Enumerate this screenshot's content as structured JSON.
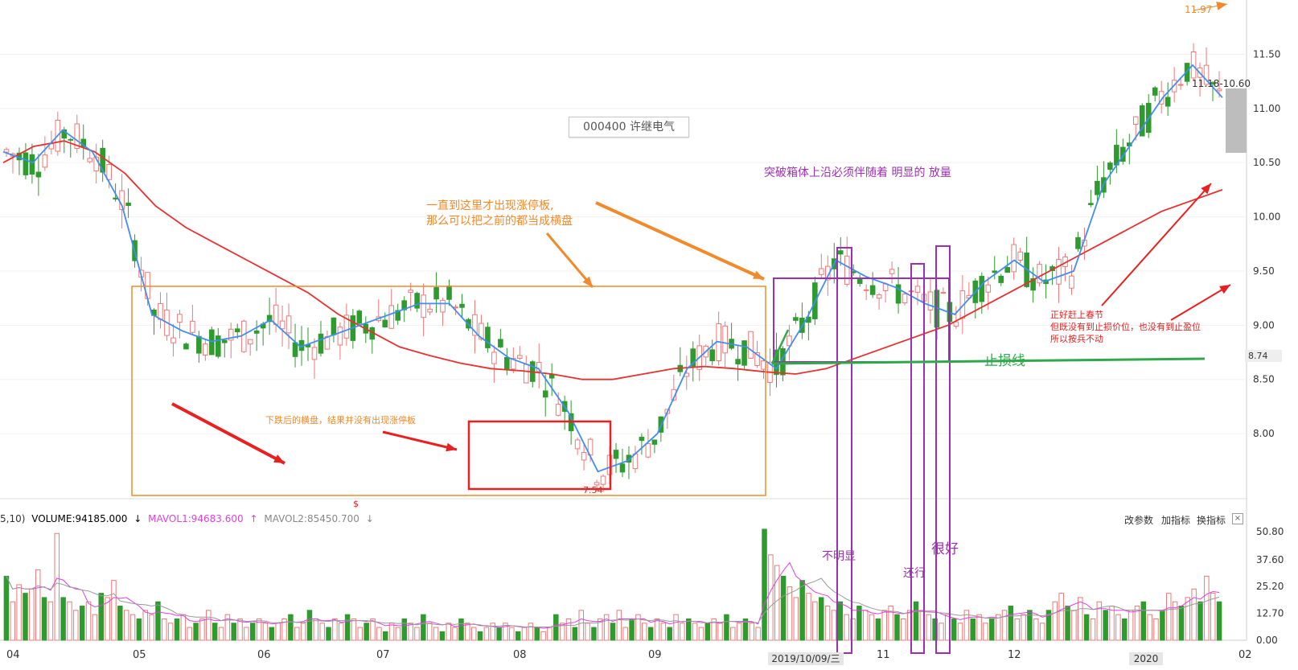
{
  "ticker": "000400 许继电气",
  "chart_data": [
    {
      "type": "candlestick",
      "x_ticks": [
        {
          "label": "04",
          "date": "2019-04"
        },
        {
          "label": "05",
          "date": "2019-05"
        },
        {
          "label": "06",
          "date": "2019-06"
        },
        {
          "label": "07",
          "date": "2019-07"
        },
        {
          "label": "08",
          "date": "2019-08"
        },
        {
          "label": "09",
          "date": "2019-09"
        },
        {
          "label": "11",
          "date": "2019-11"
        },
        {
          "label": "12",
          "date": "2019-12"
        },
        {
          "label": "02",
          "date": "2020-02"
        }
      ],
      "y_ticks": [
        "8.00",
        "8.50",
        "9.00",
        "9.50",
        "10.00",
        "10.50",
        "11.00",
        "11.50"
      ],
      "ylim": [
        7.4,
        12.0
      ],
      "series": [
        {
          "name": "MA5",
          "color": "#3f8ef0",
          "values": [
            10.6,
            10.5,
            10.8,
            10.6,
            10.1,
            9.1,
            8.95,
            8.85,
            8.9,
            9.05,
            8.8,
            8.9,
            9.0,
            9.1,
            9.2,
            9.2,
            8.9,
            8.7,
            8.6,
            8.2,
            7.65,
            7.75,
            8.0,
            8.6,
            8.85,
            8.8,
            8.6,
            9.05,
            9.6,
            9.45,
            9.35,
            9.2,
            9.1,
            9.4,
            9.6,
            9.4,
            9.5,
            10.3,
            10.7,
            11.1,
            11.4,
            11.1
          ]
        },
        {
          "name": "MA60",
          "color": "#e83030",
          "values": [
            10.5,
            10.65,
            10.7,
            10.6,
            10.4,
            10.1,
            9.9,
            9.75,
            9.6,
            9.45,
            9.3,
            9.1,
            8.95,
            8.8,
            8.72,
            8.65,
            8.6,
            8.58,
            8.55,
            8.5,
            8.5,
            8.55,
            8.6,
            8.62,
            8.6,
            8.57,
            8.55,
            8.6,
            8.7,
            8.8,
            8.9,
            9.0,
            9.15,
            9.3,
            9.45,
            9.6,
            9.75,
            9.9,
            10.05,
            10.15,
            10.25
          ]
        }
      ],
      "annotations": {
        "high_label": "11.97",
        "low_label": "7.54",
        "range_label": "11.18-10.60",
        "last_price": "8.74",
        "note_1": "一直到这里才出现涨停板,",
        "note_2": "那么可以把之前的都当成横盘",
        "note_3": "下跌后的横盘，结果并没有出现涨停板",
        "note_4": "突破箱体上沿必须伴随着 明显的 放量",
        "stop_line_label": "止损线",
        "note_5a": "正好赶上春节",
        "note_5b": "但既没有到止损价位，也没有到止盈位",
        "note_5c": "所以按兵不动",
        "vol_note_1": "不明显",
        "vol_note_2": "还行",
        "vol_note_3": "很好",
        "small_marker": "$"
      }
    },
    {
      "type": "bar",
      "title": "VOLUME",
      "y_ticks": [
        "0.00",
        "12.70",
        "25.20",
        "37.60",
        "50.80"
      ],
      "ylim": [
        0,
        55
      ],
      "values": [
        30,
        18,
        26,
        22,
        24,
        33,
        20,
        18,
        50,
        20,
        18,
        14,
        16,
        18,
        12,
        22,
        20,
        28,
        16,
        14,
        12,
        10,
        14,
        12,
        18,
        10,
        8,
        10,
        12,
        6,
        8,
        10,
        14,
        8,
        6,
        12,
        8,
        10,
        6,
        8,
        10,
        8,
        6,
        8,
        10,
        12,
        6,
        8,
        14,
        10,
        8,
        6,
        10,
        8,
        12,
        10,
        6,
        8,
        10,
        6,
        4,
        8,
        6,
        10,
        8,
        6,
        12,
        8,
        6,
        4,
        8,
        6,
        10,
        8,
        6,
        4,
        6,
        8,
        6,
        8,
        6,
        4,
        6,
        8,
        6,
        4,
        6,
        12,
        8,
        10,
        6,
        14,
        8,
        6,
        10,
        12,
        8,
        14,
        6,
        10,
        12,
        8,
        6,
        10,
        8,
        6,
        12,
        8,
        10,
        8,
        6,
        8,
        10,
        8,
        12,
        6,
        8,
        10,
        8,
        6,
        52,
        40,
        35,
        30,
        25,
        20,
        28,
        22,
        18,
        20,
        16,
        14,
        18,
        12,
        10,
        16,
        14,
        12,
        10,
        14,
        16,
        12,
        10,
        14,
        18,
        14,
        12,
        10,
        8,
        12,
        10,
        8,
        14,
        10,
        12,
        8,
        10,
        12,
        14,
        16,
        10,
        12,
        14,
        10,
        8,
        14,
        18,
        22,
        16,
        14,
        20,
        12,
        10,
        18,
        14,
        16,
        12,
        10,
        14,
        16,
        18,
        12,
        10,
        14,
        22,
        18,
        16,
        20,
        24,
        18,
        30,
        22,
        18
      ],
      "volume_header": {
        "prefix": "5,10)",
        "volume": "VOLUME:94185.000",
        "volume_arrow": "↓",
        "ma1": "MAVOL1:94683.600",
        "ma1_arrow": "↑",
        "ma2": "MAVOL2:85450.700",
        "ma2_arrow": "↓"
      }
    }
  ],
  "toolbar": {
    "params": "改参数",
    "add_indicator": "加指标",
    "switch_indicator": "换指标",
    "close": "×"
  },
  "date_tag": "2019/10/09/三",
  "year_tag": "2020",
  "x_tick_labels_extra": [
    "10",
    "11",
    "12",
    "2020"
  ]
}
